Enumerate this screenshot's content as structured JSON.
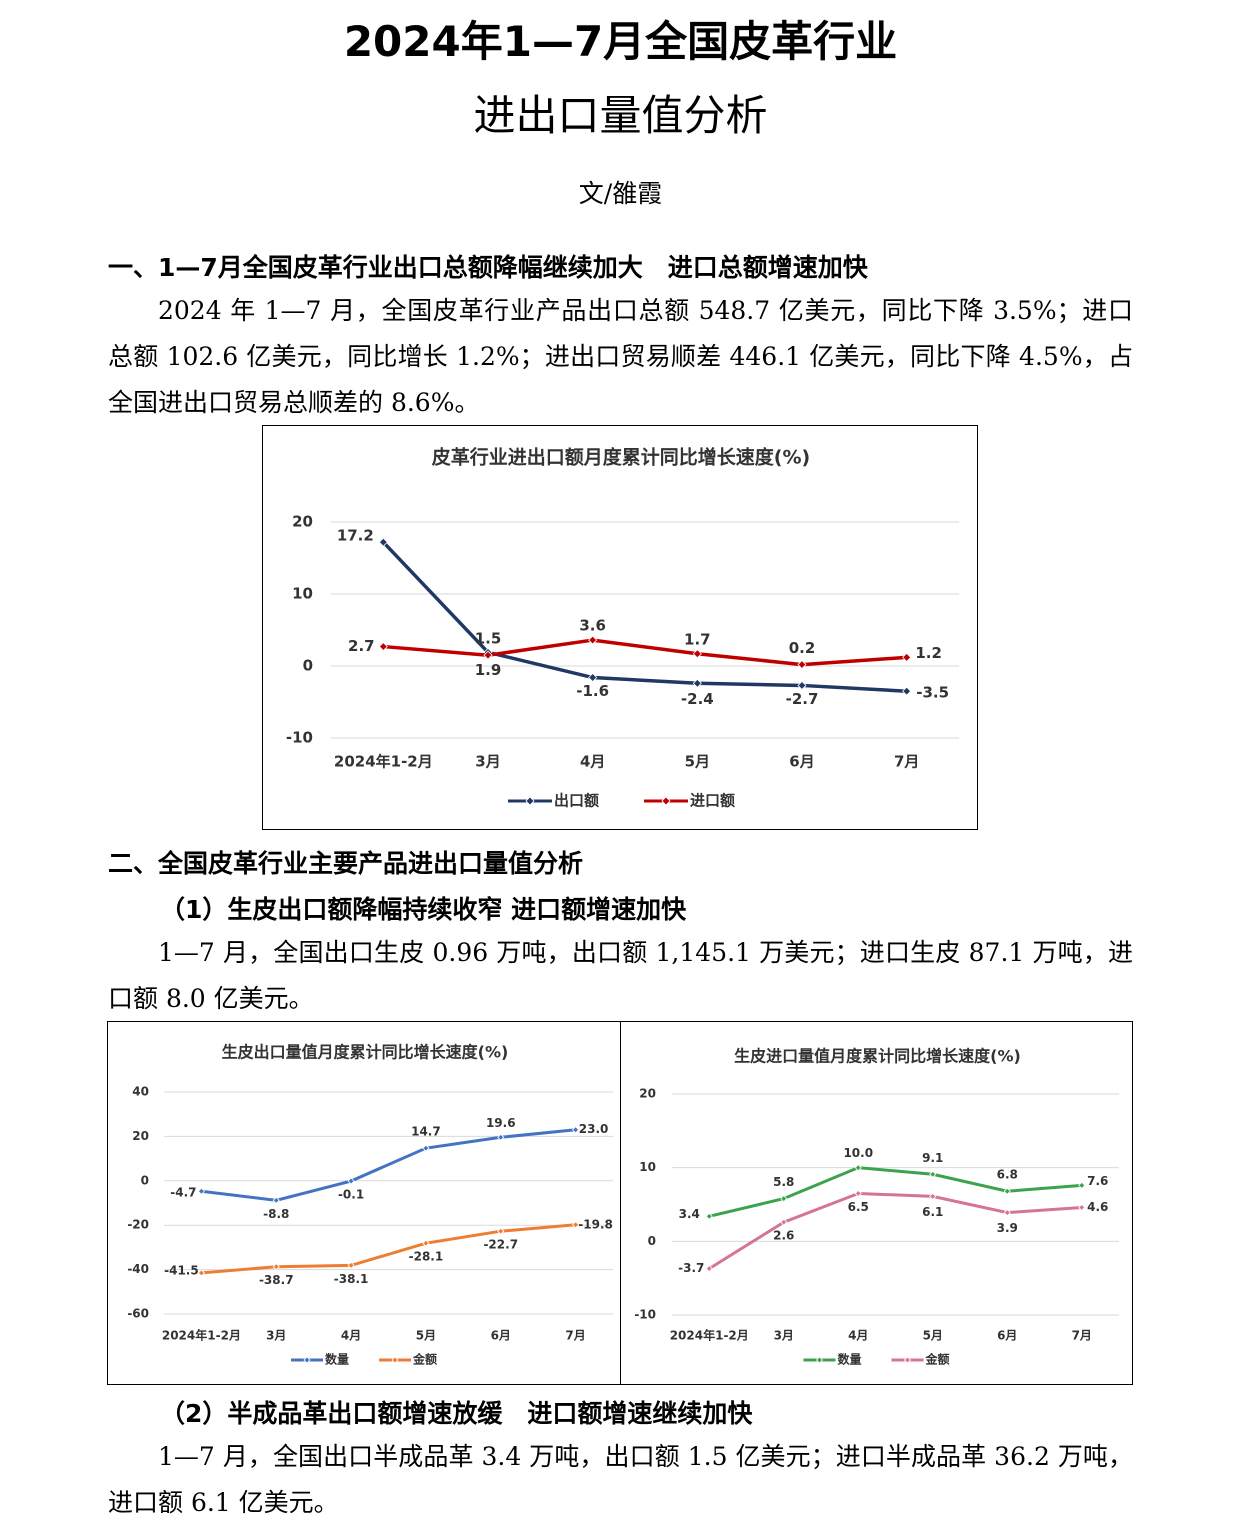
{
  "header": {
    "title_line1": "2024年1—7月全国皮革行业",
    "title_line2": "进出口量值分析",
    "author": "文/雒霞"
  },
  "section1": {
    "heading": "一、1—7月全国皮革行业出口总额降幅继续加大　进口总额增速加快",
    "paragraph": "2024 年 1—7 月，全国皮革行业产品出口总额 548.7 亿美元，同比下降 3.5%；进口总额 102.6 亿美元，同比增长 1.2%；进出口贸易顺差 446.1 亿美元，同比下降 4.5%，占全国进出口贸易总顺差的 8.6%。"
  },
  "section2": {
    "heading": "二、全国皮革行业主要产品进出口量值分析",
    "sub1": {
      "heading": "（1）生皮出口额降幅持续收窄 进口额增速加快",
      "paragraph": "1—7 月，全国出口生皮 0.96 万吨，出口额 1,145.1 万美元；进口生皮 87.1 万吨，进口额 8.0 亿美元。"
    },
    "sub2": {
      "heading": "（2）半成品革出口额增速放缓　进口额增速继续加快",
      "paragraph": "1—7 月，全国出口半成品革 3.4 万吨，出口额 1.5 亿美元；进口半成品革 36.2 万吨，进口额 6.1 亿美元。"
    }
  },
  "chart_data": [
    {
      "type": "line",
      "title": "皮革行业进出口额月度累计同比增长速度(%)",
      "categories": [
        "2024年1-2月",
        "3月",
        "4月",
        "5月",
        "6月",
        "7月"
      ],
      "series": [
        {
          "name": "出口额",
          "color": "#203864",
          "values": [
            17.2,
            1.9,
            -1.6,
            -2.4,
            -2.7,
            -3.5
          ]
        },
        {
          "name": "进口额",
          "color": "#c00000",
          "values": [
            2.7,
            1.5,
            3.6,
            1.7,
            0.2,
            1.2
          ]
        }
      ],
      "ylim": [
        -10,
        20
      ],
      "yticks": [
        -10,
        0,
        10,
        20
      ],
      "grid": true,
      "legend": "bottom"
    },
    {
      "type": "line",
      "title": "生皮出口量值月度累计同比增长速度(%)",
      "categories": [
        "2024年1-2月",
        "3月",
        "4月",
        "5月",
        "6月",
        "7月"
      ],
      "series": [
        {
          "name": "数量",
          "color": "#4472c4",
          "values": [
            -4.7,
            -8.8,
            -0.1,
            14.7,
            19.6,
            23.0
          ],
          "value_labels": [
            "-4.7",
            "-8.8",
            "-0.1",
            "14.7",
            "19.6",
            "23.0"
          ]
        },
        {
          "name": "金额",
          "color": "#ed7d31",
          "values": [
            -41.5,
            -38.7,
            -38.1,
            -28.1,
            -22.7,
            -19.8
          ]
        }
      ],
      "ylim": [
        -60,
        40
      ],
      "yticks": [
        -60,
        -40,
        -20,
        0,
        20,
        40
      ],
      "grid": true,
      "legend": "bottom"
    },
    {
      "type": "line",
      "title": "生皮进口量值月度累计同比增长速度(%)",
      "categories": [
        "2024年1-2月",
        "3月",
        "4月",
        "5月",
        "6月",
        "7月"
      ],
      "series": [
        {
          "name": "数量",
          "color": "#3ca24c",
          "values": [
            3.4,
            5.8,
            10.0,
            9.1,
            6.8,
            7.6
          ],
          "value_labels": [
            "3.4",
            "5.8",
            "10.0",
            "9.1",
            "6.8",
            "7.6"
          ]
        },
        {
          "name": "金额",
          "color": "#d5749a",
          "values": [
            -3.7,
            2.6,
            6.5,
            6.1,
            3.9,
            4.6
          ]
        }
      ],
      "ylim": [
        -10,
        20
      ],
      "yticks": [
        -10,
        0,
        10,
        20
      ],
      "grid": true,
      "legend": "bottom"
    }
  ]
}
